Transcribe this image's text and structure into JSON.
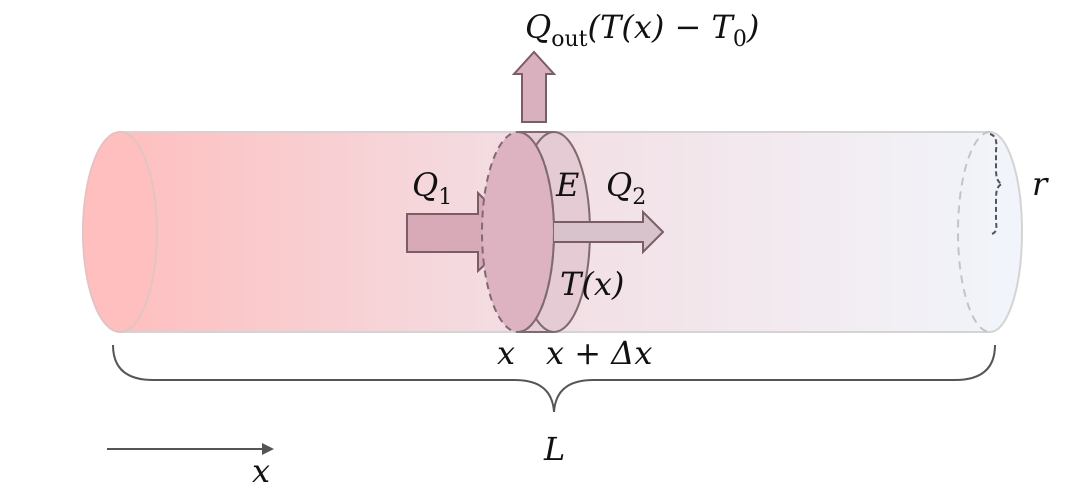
{
  "labels": {
    "q_out": {
      "main": "Q",
      "sub": "out",
      "expr_open": "(T(x) − T",
      "expr_sub": "0",
      "expr_close": ")"
    },
    "q1": {
      "main": "Q",
      "sub": "1"
    },
    "q2": {
      "main": "Q",
      "sub": "2"
    },
    "e": "E",
    "t_x": "T(x)",
    "r": "r",
    "x_left": "x",
    "x_right": "x + Δx",
    "length": "L",
    "x_axis": "x"
  },
  "colors": {
    "tube_start": "#ffbcbc",
    "tube_end": "#f1f5fb",
    "slice": "#dcb0bf",
    "arrow_fill": "#d7aeba",
    "arrow_stroke": "#7a5d66",
    "outline": "#555555"
  }
}
